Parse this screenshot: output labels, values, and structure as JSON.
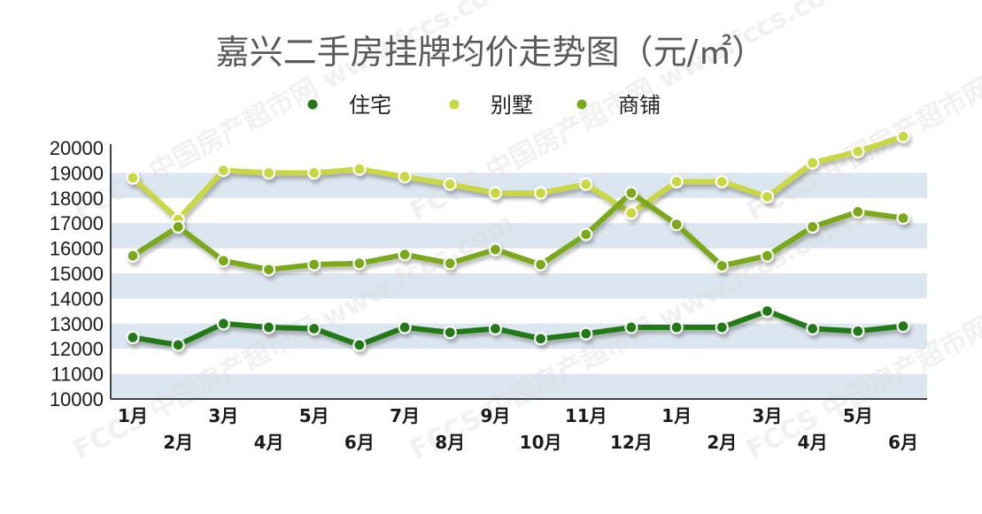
{
  "chart_data": {
    "type": "line",
    "title": "嘉兴二手房挂牌均价走势图（元/㎡）",
    "categories": [
      "1月",
      "2月",
      "3月",
      "4月",
      "5月",
      "6月",
      "7月",
      "8月",
      "9月",
      "10月",
      "11月",
      "12月",
      "1月",
      "2月",
      "3月",
      "4月",
      "5月",
      "6月"
    ],
    "ylim": [
      10000,
      20000
    ],
    "yticks": [
      10000,
      11000,
      12000,
      13000,
      14000,
      15000,
      16000,
      17000,
      18000,
      19000,
      20000
    ],
    "grid": "alternating horizontal bands",
    "legend_position": "top",
    "series": [
      {
        "name": "住宅",
        "color": "#237a14",
        "values": [
          12450,
          12150,
          13000,
          12850,
          12800,
          12150,
          12850,
          12650,
          12800,
          12400,
          12600,
          12850,
          12850,
          12850,
          13500,
          12800,
          12700,
          12900
        ]
      },
      {
        "name": "别墅",
        "color": "#c9d843",
        "values": [
          18800,
          17150,
          19100,
          19000,
          19000,
          19150,
          18850,
          18550,
          18200,
          18200,
          18550,
          17400,
          18650,
          18650,
          18050,
          19400,
          19850,
          20450
        ]
      },
      {
        "name": "商铺",
        "color": "#7aaa1b",
        "values": [
          15700,
          16850,
          15500,
          15150,
          15350,
          15400,
          15750,
          15400,
          15950,
          15350,
          16550,
          18200,
          16950,
          15300,
          15700,
          16850,
          17450,
          17200
        ]
      }
    ],
    "watermark": "FCCS 中国房产超市网 www.fccs.com"
  }
}
